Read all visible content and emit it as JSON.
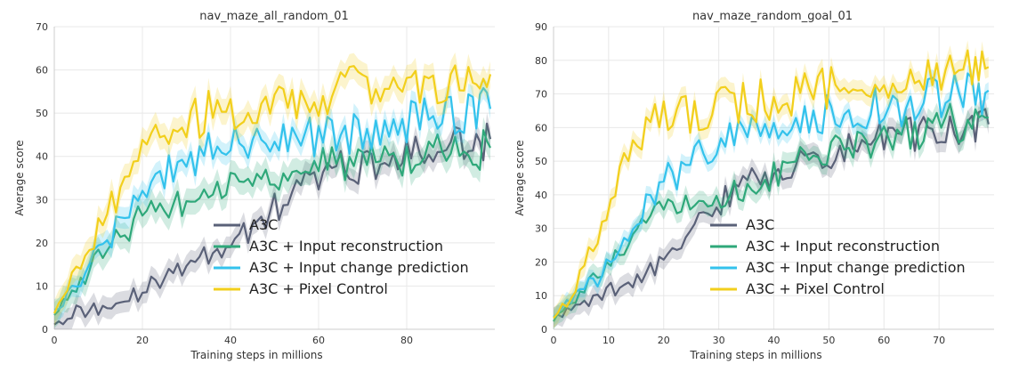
{
  "chart_data": [
    {
      "type": "line",
      "title": "nav_maze_all_random_01",
      "xlabel": "Training steps in millions",
      "ylabel": "Average score",
      "xlim": [
        0,
        100
      ],
      "ylim": [
        0,
        70
      ],
      "xticks": [
        0,
        20,
        40,
        60,
        80
      ],
      "yticks": [
        0,
        10,
        20,
        30,
        40,
        50,
        60,
        70
      ],
      "grid": true,
      "legend_position": "bottom-right",
      "x": [
        0,
        5,
        10,
        15,
        20,
        25,
        30,
        35,
        40,
        45,
        50,
        55,
        60,
        65,
        70,
        75,
        80,
        85,
        90,
        95,
        99
      ],
      "series": [
        {
          "name": "A3C",
          "color": "#5a6178",
          "values": [
            2,
            4,
            5,
            6,
            9,
            12,
            14,
            17,
            20,
            24,
            28,
            32,
            35,
            37,
            38,
            39,
            40,
            41,
            42,
            43,
            44
          ],
          "band": 2.5
        },
        {
          "name": "A3C + Input reconstruction",
          "color": "#2fa87a",
          "values": [
            4,
            10,
            16,
            22,
            26,
            28,
            30,
            32,
            33,
            35,
            36,
            37,
            38,
            38,
            39,
            40,
            40,
            41,
            41,
            41,
            42
          ],
          "band": 3
        },
        {
          "name": "A3C + Input change prediction",
          "color": "#33c2ec",
          "values": [
            4,
            11,
            17,
            25,
            31,
            36,
            39,
            41,
            42,
            43,
            44,
            44,
            45,
            45,
            46,
            47,
            48,
            49,
            50,
            50,
            51
          ],
          "band": 2.5
        },
        {
          "name": "A3C + Pixel Control",
          "color": "#f2cf1c",
          "values": [
            4,
            14,
            23,
            32,
            40,
            45,
            48,
            50,
            51,
            52,
            52,
            53,
            54,
            55,
            56,
            57,
            57,
            58,
            58,
            59,
            59
          ],
          "band": 3
        }
      ]
    },
    {
      "type": "line",
      "title": "nav_maze_random_goal_01",
      "xlabel": "Training steps in millions",
      "ylabel": "Average score",
      "xlim": [
        0,
        80
      ],
      "ylim": [
        0,
        90
      ],
      "xticks": [
        0,
        10,
        20,
        30,
        40,
        50,
        60,
        70
      ],
      "yticks": [
        0,
        10,
        20,
        30,
        40,
        50,
        60,
        70,
        80,
        90
      ],
      "grid": true,
      "legend_position": "bottom-right",
      "x": [
        0,
        4,
        8,
        12,
        16,
        20,
        24,
        28,
        32,
        36,
        40,
        44,
        48,
        52,
        56,
        60,
        64,
        68,
        72,
        76,
        79
      ],
      "series": [
        {
          "name": "A3C",
          "color": "#5a6178",
          "values": [
            3,
            7,
            10,
            13,
            15,
            20,
            28,
            35,
            40,
            44,
            46,
            49,
            51,
            53,
            55,
            56,
            57,
            58,
            59,
            60,
            61
          ],
          "band": 3
        },
        {
          "name": "A3C + Input reconstruction",
          "color": "#2fa87a",
          "values": [
            3,
            10,
            17,
            24,
            30,
            35,
            36,
            38,
            40,
            43,
            46,
            49,
            51,
            53,
            54,
            56,
            58,
            60,
            61,
            62,
            63
          ],
          "band": 3
        },
        {
          "name": "A3C + Input change prediction",
          "color": "#33c2ec",
          "values": [
            3,
            10,
            15,
            24,
            35,
            44,
            48,
            53,
            57,
            59,
            61,
            62,
            63,
            64,
            65,
            66,
            67,
            68,
            69,
            70,
            71
          ],
          "band": 2.5
        },
        {
          "name": "A3C + Pixel Control",
          "color": "#f2cf1c",
          "values": [
            4,
            12,
            28,
            47,
            58,
            63,
            64,
            65,
            67,
            68,
            69,
            70,
            71,
            72,
            73,
            74,
            75,
            76,
            77,
            78,
            78
          ],
          "band": 3
        }
      ]
    }
  ]
}
